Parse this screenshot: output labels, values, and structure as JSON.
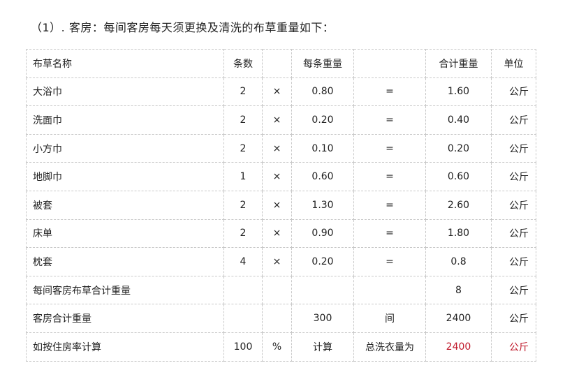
{
  "title": "（1）. 客房：每间客房每天须更换及清洗的布草重量如下：",
  "header": [
    "布草名称",
    "条数",
    "",
    "每条重量",
    "",
    "合计重量",
    "单位"
  ],
  "items": [
    [
      "大浴巾",
      "2",
      "×",
      "0.80",
      "=",
      "1.60",
      "公斤"
    ],
    [
      "洗面巾",
      "2",
      "×",
      "0.20",
      "=",
      "0.40",
      "公斤"
    ],
    [
      "小方巾",
      "2",
      "×",
      "0.10",
      "=",
      "0.20",
      "公斤"
    ],
    [
      "地脚巾",
      "1",
      "×",
      "0.60",
      "=",
      "0.60",
      "公斤"
    ],
    [
      "被套",
      "2",
      "×",
      "1.30",
      "=",
      "2.60",
      "公斤"
    ],
    [
      "床单",
      "2",
      "×",
      "0.90",
      "=",
      "1.80",
      "公斤"
    ],
    [
      "枕套",
      "4",
      "×",
      "0.20",
      "=",
      "0.8",
      "公斤"
    ],
    [
      "每间客房布草合计重量",
      "",
      "",
      "",
      "",
      "8",
      "公斤"
    ],
    [
      "客房合计重量",
      "",
      "",
      "300",
      "间",
      "2400",
      "公斤"
    ],
    [
      "如按住房率计算",
      "100",
      "%",
      "计算",
      "总洗衣量为",
      "2400",
      "公斤"
    ]
  ],
  "highlight_color": "#c0182a"
}
